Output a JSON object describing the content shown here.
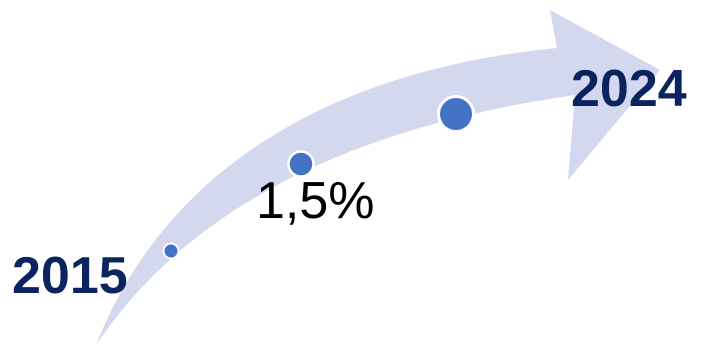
{
  "timeline": {
    "start_label": "2015",
    "end_label": "2024",
    "value_label": "1,5%"
  },
  "colors": {
    "arrow": "#d3d8ee",
    "marker": "#4472c4",
    "marker_outline": "#ffffff",
    "year_text": "#0b2460",
    "value_text": "#000000"
  }
}
